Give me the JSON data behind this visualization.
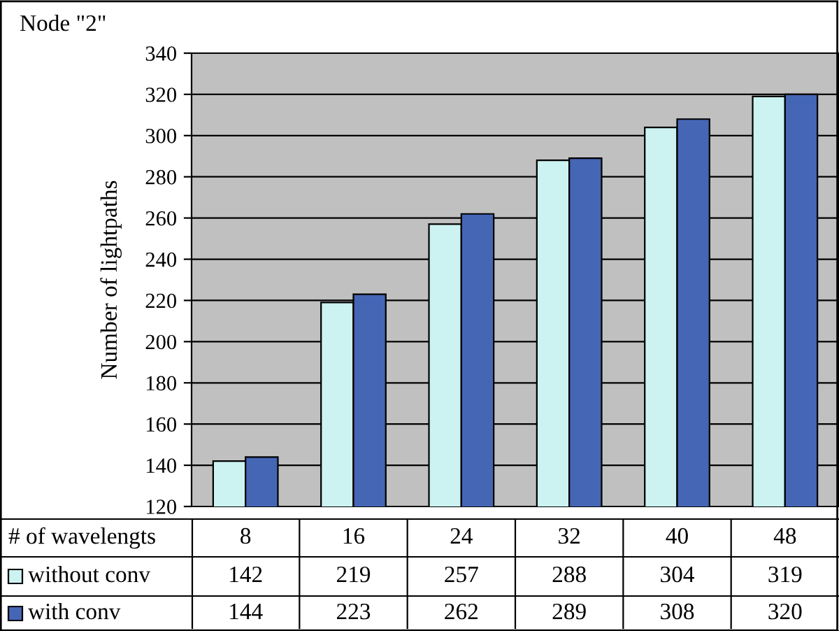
{
  "chart_data": {
    "type": "bar",
    "title": "Node \"2\"",
    "ylabel": "Number of lightpaths",
    "xlabel": "# of wavelengts",
    "categories": [
      "8",
      "16",
      "24",
      "32",
      "40",
      "48"
    ],
    "series": [
      {
        "name": "without conv",
        "color": "#ccf2f2",
        "values": [
          142,
          219,
          257,
          288,
          304,
          319
        ]
      },
      {
        "name": "with conv",
        "color": "#4466b4",
        "values": [
          144,
          223,
          262,
          289,
          308,
          320
        ]
      }
    ],
    "ylim": [
      120,
      340
    ],
    "yticks": [
      120,
      140,
      160,
      180,
      200,
      220,
      240,
      260,
      280,
      300,
      320,
      340
    ],
    "grid": "y",
    "legend": "bottom left",
    "data_labels": true
  }
}
